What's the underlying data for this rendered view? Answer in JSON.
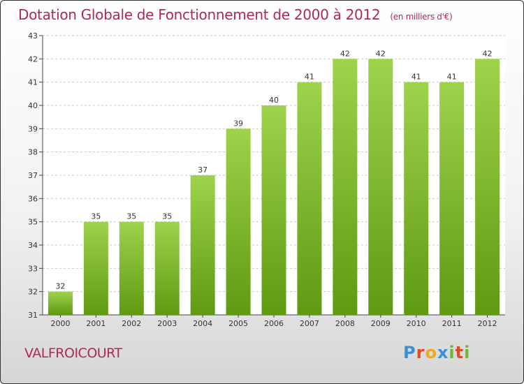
{
  "title": "Dotation Globale de Fonctionnement de 2000 à 2012",
  "unit_label": "(en milliers d'€)",
  "commune": "VALFROICOURT",
  "logo": {
    "letters": [
      "P",
      "r",
      "o",
      "x",
      "i",
      "t",
      "i"
    ],
    "colors": [
      "#3a8fd6",
      "#e0492c",
      "#f0a81c",
      "#3a8fd6",
      "#6fb63a",
      "#e0492c",
      "#6fb63a"
    ]
  },
  "colors": {
    "bar_top": "#9ed34b",
    "bar_bottom": "#5f9a12",
    "title": "#b0285a"
  },
  "chart_data": {
    "type": "bar",
    "title": "Dotation Globale de Fonctionnement de 2000 à 2012",
    "xlabel": "",
    "ylabel": "",
    "categories": [
      "2000",
      "2001",
      "2002",
      "2003",
      "2004",
      "2005",
      "2006",
      "2007",
      "2008",
      "2009",
      "2010",
      "2011",
      "2012"
    ],
    "values": [
      32,
      35,
      35,
      35,
      37,
      39,
      40,
      41,
      42,
      42,
      41,
      41,
      42
    ],
    "ylim": [
      31,
      43
    ],
    "yticks": [
      31,
      32,
      33,
      34,
      35,
      36,
      37,
      38,
      39,
      40,
      41,
      42,
      43
    ],
    "grid": true
  }
}
